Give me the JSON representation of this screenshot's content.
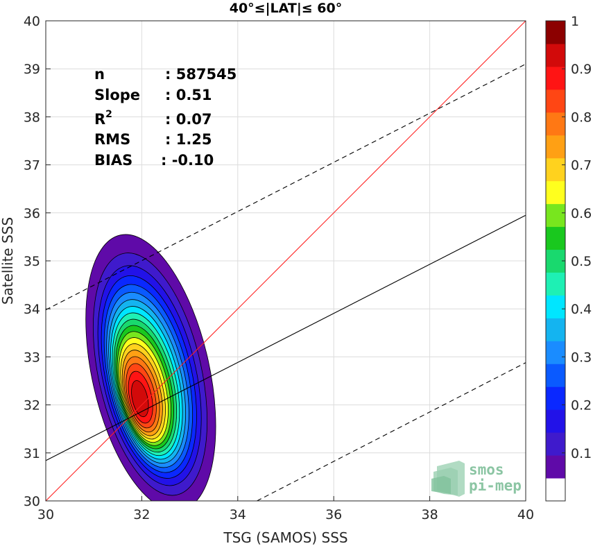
{
  "chart_data": {
    "type": "contour",
    "title": "40°≤|LAT|≤ 60°",
    "xlabel": "TSG (SAMOS) SSS",
    "ylabel": "Satellite SSS",
    "xlim": [
      30,
      40
    ],
    "ylim": [
      30,
      40
    ],
    "xticks": [
      "30",
      "32",
      "34",
      "36",
      "38",
      "40"
    ],
    "yticks": [
      "30",
      "31",
      "32",
      "33",
      "34",
      "35",
      "36",
      "37",
      "38",
      "39",
      "40"
    ],
    "grid": true,
    "stats": [
      {
        "label": "n",
        "sep": ": 587545"
      },
      {
        "label": "Slope",
        "sep": ": 0.51"
      },
      {
        "label": "R2",
        "sep": ": 0.07"
      },
      {
        "label": "RMS",
        "sep": ": 1.25"
      },
      {
        "label": "BIAS",
        "sep": ": -0.10"
      }
    ],
    "lines": [
      {
        "name": "one-to-one",
        "color": "#ff2020",
        "style": "solid",
        "points": [
          [
            30,
            30
          ],
          [
            40,
            40
          ]
        ]
      },
      {
        "name": "regression",
        "color": "#000000",
        "style": "solid",
        "points": [
          [
            30,
            30.84
          ],
          [
            40,
            35.95
          ]
        ]
      },
      {
        "name": "upper-bound",
        "color": "#000000",
        "style": "dashed",
        "points": [
          [
            30,
            33.98
          ],
          [
            40,
            39.1
          ]
        ]
      },
      {
        "name": "lower-bound",
        "color": "#000000",
        "style": "dashed",
        "points": [
          [
            34.4,
            30
          ],
          [
            40,
            32.88
          ]
        ]
      }
    ],
    "density": {
      "peak": [
        31.95,
        32.1
      ],
      "sigma_x": 0.5,
      "sigma_y": 1.2,
      "rho": 0.3,
      "x_range": [
        30.9,
        33.3
      ],
      "y_range": [
        29.5,
        34.6
      ]
    },
    "colorbar": {
      "min": 0,
      "max": 1,
      "levels": [
        0.05,
        0.1,
        0.15,
        0.2,
        0.25,
        0.3,
        0.35,
        0.4,
        0.45,
        0.5,
        0.55,
        0.6,
        0.65,
        0.7,
        0.75,
        0.8,
        0.85,
        0.9,
        0.95
      ],
      "colors": [
        "#ffffff",
        "#5f0aa8",
        "#3f1acc",
        "#2212e8",
        "#0a28ff",
        "#0a5aff",
        "#1a8cff",
        "#14b4f0",
        "#00e6ff",
        "#1ef0b4",
        "#19d96e",
        "#19c81e",
        "#78e61e",
        "#ffff1e",
        "#ffd21e",
        "#ffa014",
        "#ff7814",
        "#ff4614",
        "#ff1414",
        "#d20a0a",
        "#8c0000"
      ],
      "ticks": [
        "0.1",
        "0.2",
        "0.3",
        "0.4",
        "0.5",
        "0.6",
        "0.7",
        "0.8",
        "0.9",
        "1"
      ]
    }
  },
  "logo": {
    "line1": "smos",
    "line2": "pi-mep"
  }
}
